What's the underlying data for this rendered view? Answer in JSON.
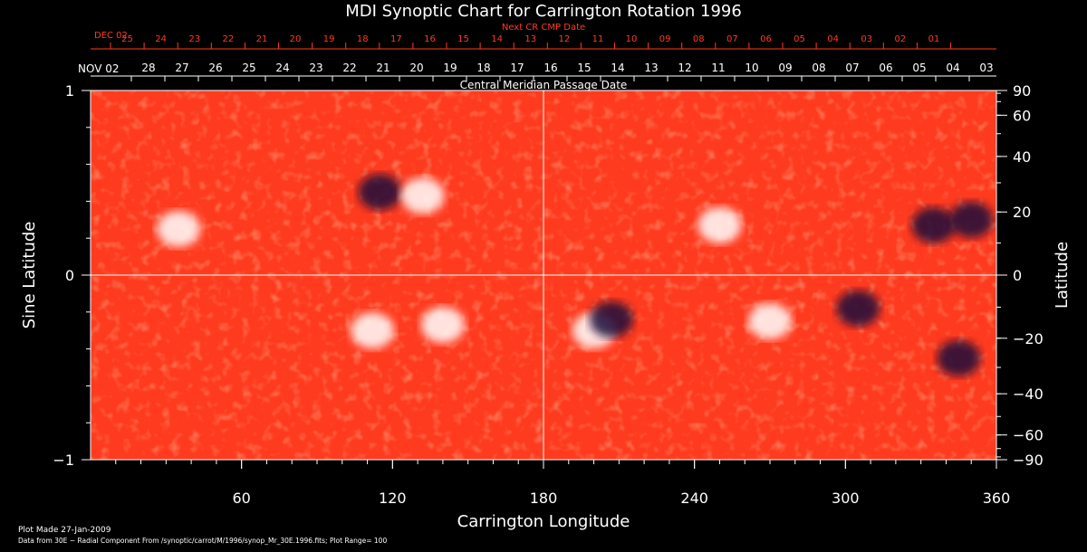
{
  "chart_data": {
    "type": "heatmap",
    "title": "MDI Synoptic Chart for Carrington Rotation 1996",
    "xlabel": "Carrington Longitude",
    "ylabel_left": "Sine Latitude",
    "ylabel_right": "Latitude",
    "xlim": [
      0,
      360
    ],
    "ylim": [
      -1,
      1
    ],
    "x_ticks": [
      60,
      120,
      180,
      240,
      300,
      360
    ],
    "y_ticks_left": [
      {
        "label": "1",
        "sin": 1
      },
      {
        "label": "0",
        "sin": 0
      },
      {
        "label": "−1",
        "sin": -1
      }
    ],
    "y_ticks_right": [
      90,
      60,
      40,
      20,
      0,
      -20,
      -40,
      -60,
      -90
    ],
    "y_ticks_right_labels": [
      "90",
      "60",
      "40",
      "20",
      "0",
      "−20",
      "−40",
      "−60",
      "−90"
    ],
    "top_axis_red": {
      "title": "Next CR CMP Date",
      "start_label": "DEC 02",
      "days": [
        "25",
        "24",
        "23",
        "22",
        "21",
        "20",
        "19",
        "18",
        "17",
        "16",
        "15",
        "14",
        "13",
        "12",
        "11",
        "10",
        "09",
        "08",
        "07",
        "06",
        "05",
        "04",
        "03",
        "02",
        "01"
      ]
    },
    "top_axis_white": {
      "title": "Central Meridian Passage Date",
      "start_label": "NOV 02",
      "days": [
        "28",
        "27",
        "26",
        "25",
        "24",
        "23",
        "22",
        "21",
        "20",
        "19",
        "18",
        "17",
        "16",
        "15",
        "14",
        "13",
        "12",
        "11",
        "10",
        "09",
        "08",
        "07",
        "06",
        "05",
        "04",
        "03"
      ]
    },
    "grid": {
      "center_meridian": 180,
      "equator": 0
    },
    "colors": {
      "background": "#000000",
      "field_base": "#ff3b1f",
      "positive": "#ffffff",
      "negative": "#1a0a3a"
    },
    "active_regions": [
      {
        "lon": 115,
        "sinlat": 0.45,
        "polarity": "negative"
      },
      {
        "lon": 132,
        "sinlat": 0.43,
        "polarity": "positive"
      },
      {
        "lon": 35,
        "sinlat": 0.25,
        "polarity": "positive"
      },
      {
        "lon": 250,
        "sinlat": 0.27,
        "polarity": "positive"
      },
      {
        "lon": 335,
        "sinlat": 0.27,
        "polarity": "negative"
      },
      {
        "lon": 350,
        "sinlat": 0.3,
        "polarity": "negative"
      },
      {
        "lon": 112,
        "sinlat": -0.3,
        "polarity": "positive"
      },
      {
        "lon": 140,
        "sinlat": -0.27,
        "polarity": "positive"
      },
      {
        "lon": 200,
        "sinlat": -0.3,
        "polarity": "positive"
      },
      {
        "lon": 207,
        "sinlat": -0.24,
        "polarity": "negative"
      },
      {
        "lon": 270,
        "sinlat": -0.25,
        "polarity": "positive"
      },
      {
        "lon": 305,
        "sinlat": -0.18,
        "polarity": "negative"
      },
      {
        "lon": 345,
        "sinlat": -0.45,
        "polarity": "negative"
      }
    ]
  },
  "footer": {
    "plot_made": "Plot Made 27-Jan-2009",
    "data_from": "Data from 30E − Radial Component From /synoptic/carrot/M/1996/synop_Mr_30E.1996.fits; Plot Range= 100"
  }
}
